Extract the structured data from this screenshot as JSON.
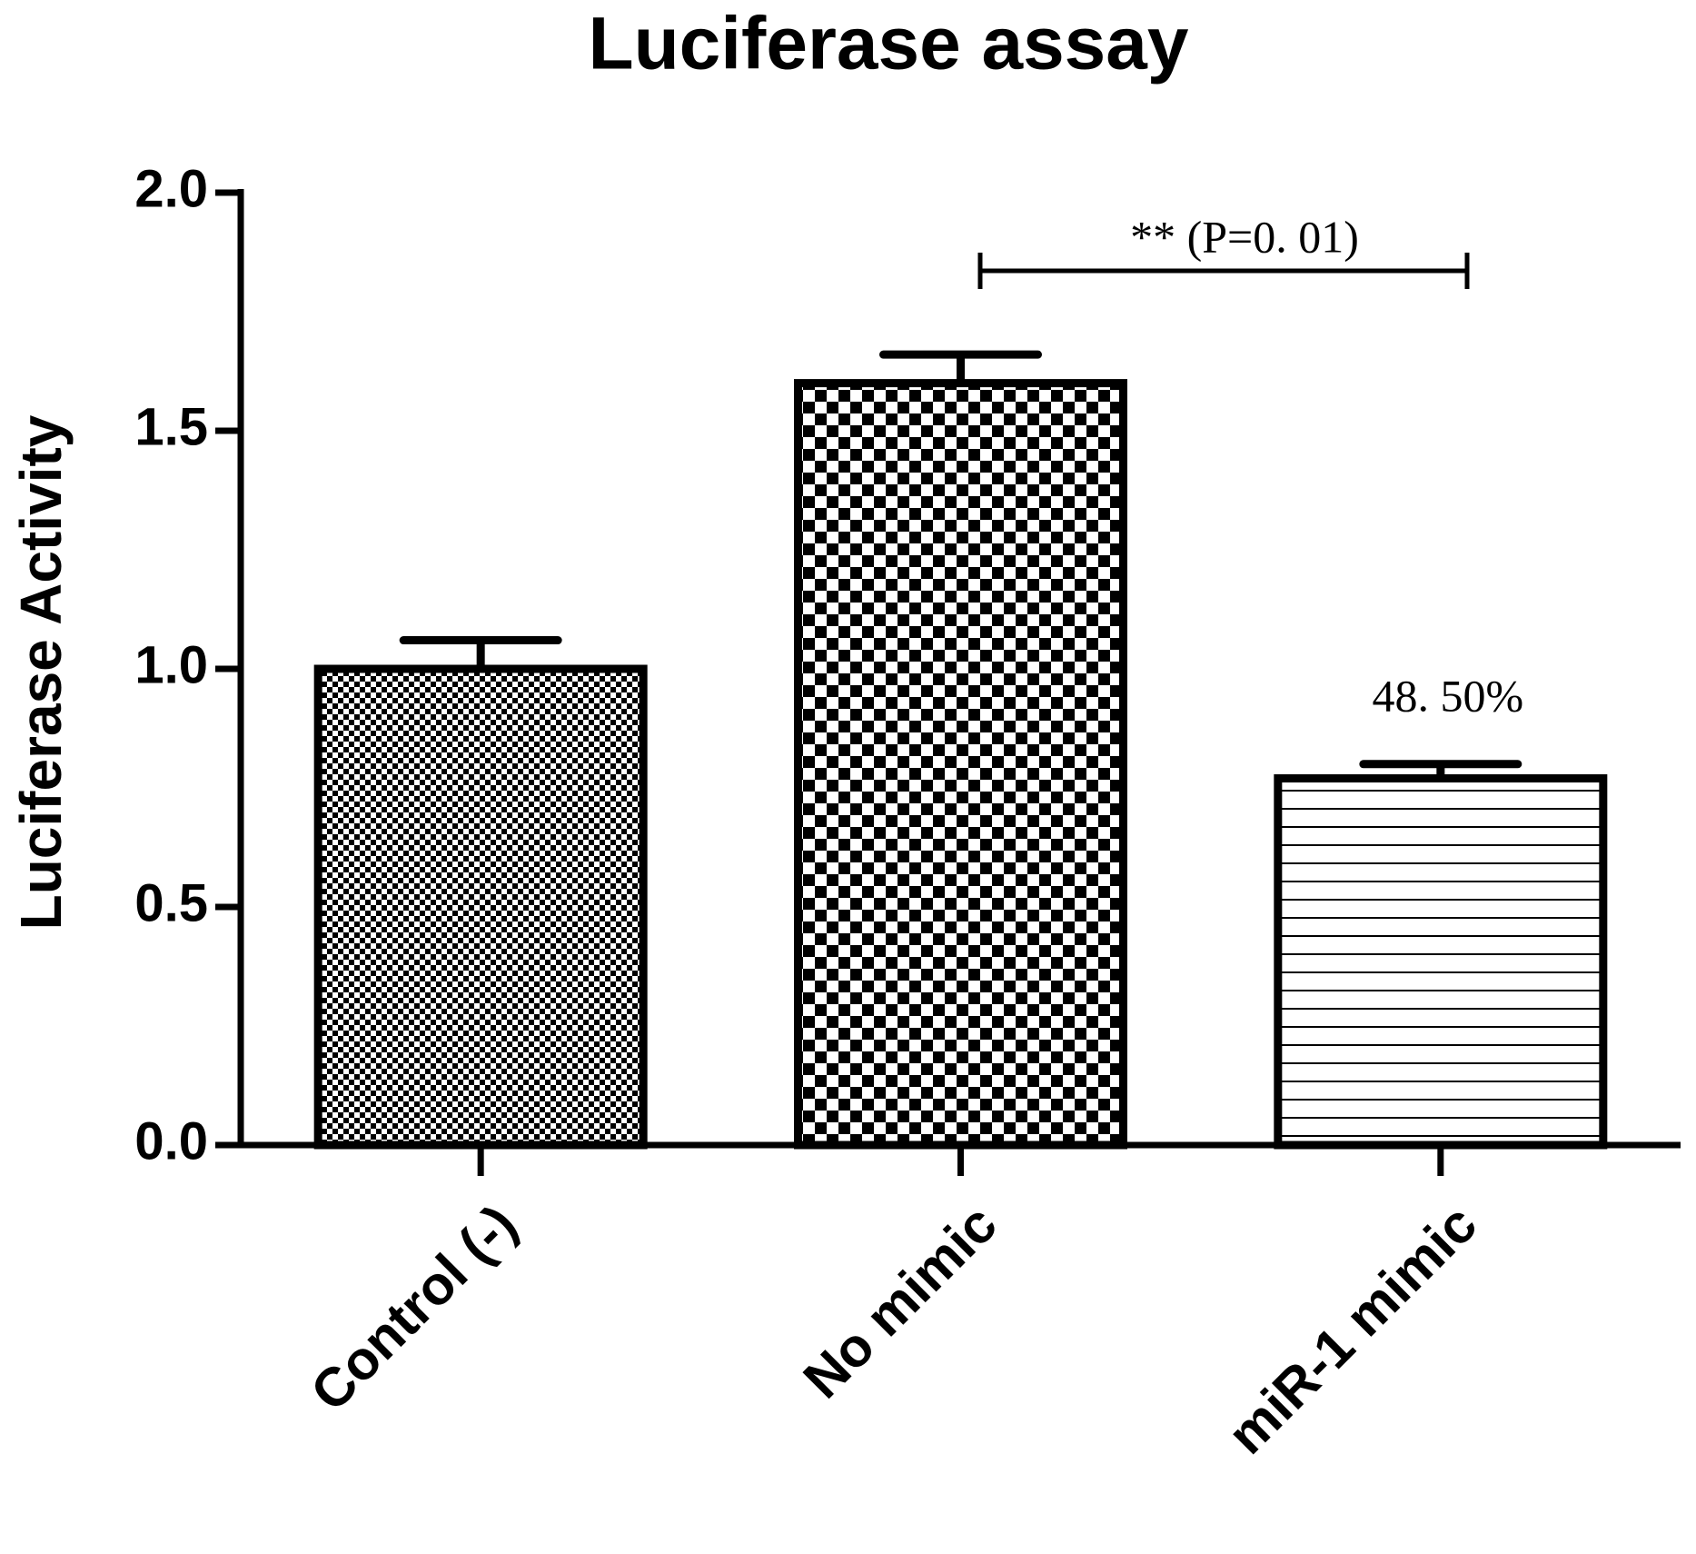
{
  "chart_data": {
    "type": "bar",
    "title": "Luciferase assay",
    "y_label": "Luciferase Activity",
    "categories": [
      "Control (-)",
      "No mimic",
      "miR-1 mimic"
    ],
    "values": [
      1.0,
      1.6,
      0.77
    ],
    "errors": [
      0.06,
      0.06,
      0.03
    ],
    "color": "#000000",
    "ylim": [
      0,
      2
    ],
    "yticks": [
      {
        "value": 0,
        "label": "0.0"
      },
      {
        "value": 0.5,
        "label": "0.5"
      },
      {
        "value": 1,
        "label": "1.0"
      },
      {
        "value": 1.5,
        "label": "1.5"
      },
      {
        "value": 2,
        "label": "2.0"
      }
    ],
    "grid": false,
    "significance": "**  (P=0. 01)",
    "percent_label": "48. 50%"
  }
}
